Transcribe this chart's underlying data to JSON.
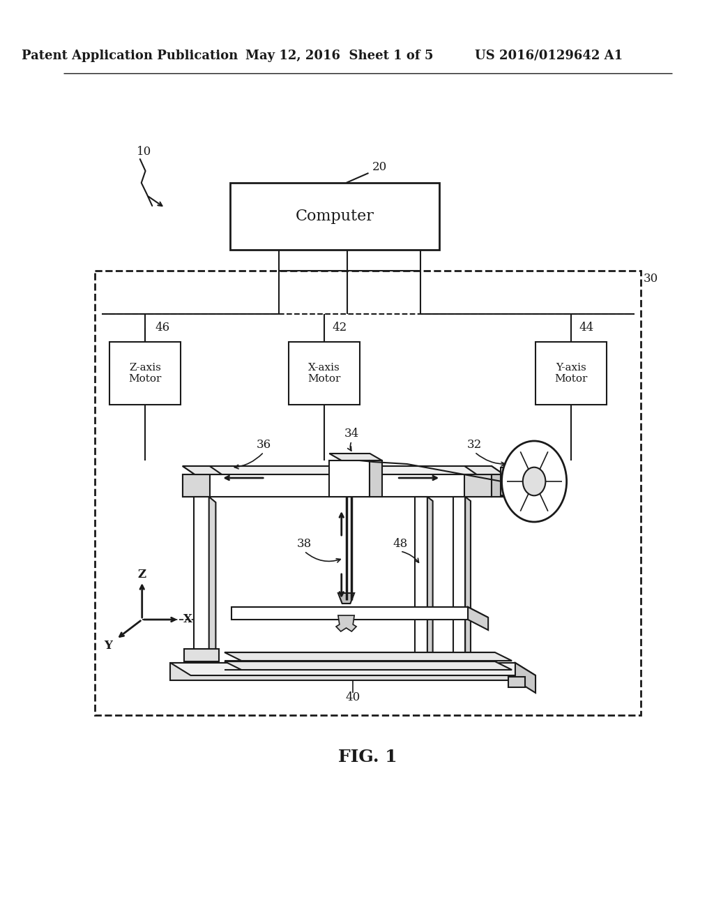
{
  "bg_color": "#ffffff",
  "line_color": "#1a1a1a",
  "header_left": "Patent Application Publication",
  "header_center": "May 12, 2016  Sheet 1 of 5",
  "header_right": "US 2016/0129642 A1",
  "fig_label": "FIG. 1",
  "computer_label": "Computer",
  "ref_10": "10",
  "ref_20": "20",
  "ref_30": "30",
  "ref_32": "32",
  "ref_34": "34",
  "ref_36": "36",
  "ref_38": "38",
  "ref_40": "40",
  "ref_42": "42",
  "ref_44": "44",
  "ref_46": "46",
  "ref_48": "48",
  "zmotor_label": "Z-axis\nMotor",
  "xmotor_label": "X-axis\nMotor",
  "ymotor_label": "Y-axis\nMotor",
  "axis_x": "X",
  "axis_y": "Y",
  "axis_z": "Z"
}
